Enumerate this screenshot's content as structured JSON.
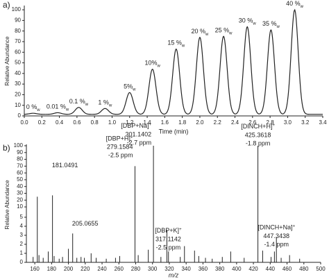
{
  "chart_data": [
    {
      "type": "chromatogram",
      "panel_label": "a)",
      "xlabel": "Time (min)",
      "ylabel": "Relative Abundance",
      "color": "#222222",
      "xlim": [
        0,
        3.4
      ],
      "ylim": [
        0,
        104
      ],
      "xticks": [
        {
          "value": 0,
          "label": "0.0"
        },
        0.2,
        0.4,
        0.6,
        0.8,
        {
          "value": 1,
          "label": "1.0"
        },
        1.2,
        1.4,
        1.6,
        1.8,
        {
          "value": 2,
          "label": "2.0"
        },
        2.2,
        2.4,
        2.6,
        2.8,
        {
          "value": 3,
          "label": "3.0"
        },
        3.2,
        3.4
      ],
      "yticks": [
        0,
        10,
        20,
        30,
        40,
        50,
        60,
        70,
        80,
        90,
        100
      ],
      "baseline": 1.5,
      "peaks": [
        {
          "x": 0.1,
          "y": 2.5,
          "label": "0 %",
          "sub": "w"
        },
        {
          "x": 0.38,
          "y": 3,
          "label": "0.01 %",
          "sub": "w"
        },
        {
          "x": 0.62,
          "y": 8,
          "label": "0.1 %",
          "sub": "w"
        },
        {
          "x": 0.92,
          "y": 7,
          "label": "1 %",
          "sub": "w"
        },
        {
          "x": 1.2,
          "y": 22,
          "label": "5%",
          "sub": "w"
        },
        {
          "x": 1.46,
          "y": 44,
          "label": "10%",
          "sub": "w"
        },
        {
          "x": 1.73,
          "y": 63,
          "label": "15 %",
          "sub": "w"
        },
        {
          "x": 2.0,
          "y": 74,
          "label": "20 %",
          "sub": "w"
        },
        {
          "x": 2.27,
          "y": 75,
          "label": "25 %",
          "sub": "w"
        },
        {
          "x": 2.54,
          "y": 84,
          "label": "30 %",
          "sub": "w"
        },
        {
          "x": 2.81,
          "y": 81,
          "label": "35 %",
          "sub": "w"
        },
        {
          "x": 3.08,
          "y": 100,
          "label": "40 %",
          "sub": "w"
        }
      ]
    },
    {
      "type": "spectrum",
      "panel_label": "b)",
      "xlabel": "m/z",
      "ylabel": "Relative Abundance",
      "color": "#222222",
      "xlim": [
        150,
        500
      ],
      "ylim": [
        0,
        100
      ],
      "ybreak": 5,
      "xticks": [
        160,
        180,
        200,
        220,
        240,
        260,
        280,
        300,
        320,
        340,
        360,
        380,
        400,
        420,
        440,
        460,
        480,
        500
      ],
      "yticks": [
        0,
        1,
        2,
        3,
        4,
        5,
        10,
        20,
        30,
        40,
        50,
        60,
        70,
        80,
        90,
        100
      ],
      "peaks": [
        {
          "x": 158,
          "y": 0.6
        },
        {
          "x": 163,
          "y": 25
        },
        {
          "x": 165,
          "y": 0.8
        },
        {
          "x": 170,
          "y": 0.5
        },
        {
          "x": 176,
          "y": 1.2
        },
        {
          "x": 181.0491,
          "y": 27
        },
        {
          "x": 183,
          "y": 0.7
        },
        {
          "x": 189,
          "y": 0.4
        },
        {
          "x": 193,
          "y": 0.6
        },
        {
          "x": 200,
          "y": 1.5
        },
        {
          "x": 205.0655,
          "y": 3.2
        },
        {
          "x": 210,
          "y": 0.5
        },
        {
          "x": 215,
          "y": 0.6
        },
        {
          "x": 219,
          "y": 0.5
        },
        {
          "x": 227,
          "y": 1
        },
        {
          "x": 233,
          "y": 0.5
        },
        {
          "x": 245,
          "y": 0.4
        },
        {
          "x": 256,
          "y": 0.5
        },
        {
          "x": 261,
          "y": 0.7
        },
        {
          "x": 279.1584,
          "y": 70,
          "ion": "[DBP+H]",
          "charge": "+",
          "ppm": "-2.5 ppm"
        },
        {
          "x": 283,
          "y": 0.8
        },
        {
          "x": 295,
          "y": 1.4
        },
        {
          "x": 301.1402,
          "y": 100,
          "ion": "[DBP+Na]",
          "charge": "+",
          "ppm": "-2.7 ppm"
        },
        {
          "x": 310,
          "y": 0.6
        },
        {
          "x": 317.1142,
          "y": 3.6,
          "ion": "[DBP+K]",
          "charge": "+",
          "ppm": "-2.5 ppm"
        },
        {
          "x": 319,
          "y": 1.2
        },
        {
          "x": 333,
          "y": 0.6
        },
        {
          "x": 338,
          "y": 1.8
        },
        {
          "x": 350,
          "y": 1.3
        },
        {
          "x": 355,
          "y": 0.7
        },
        {
          "x": 363,
          "y": 0.5
        },
        {
          "x": 371,
          "y": 0.4
        },
        {
          "x": 383,
          "y": 0.6
        },
        {
          "x": 393,
          "y": 1.2
        },
        {
          "x": 409,
          "y": 0.5
        },
        {
          "x": 425.3618,
          "y": 100,
          "ion": "[DINCH+H]",
          "charge": "+",
          "ppm": "-1.8 ppm"
        },
        {
          "x": 431,
          "y": 1.3
        },
        {
          "x": 441,
          "y": 0.6
        },
        {
          "x": 445,
          "y": 1.2
        },
        {
          "x": 447.3438,
          "y": 2.8,
          "ion": "[DINCH+Na]",
          "charge": "+",
          "ppm": "-1.4 ppm"
        },
        {
          "x": 453,
          "y": 0.5
        },
        {
          "x": 463,
          "y": 0.8
        },
        {
          "x": 475,
          "y": 0.4
        }
      ]
    }
  ]
}
